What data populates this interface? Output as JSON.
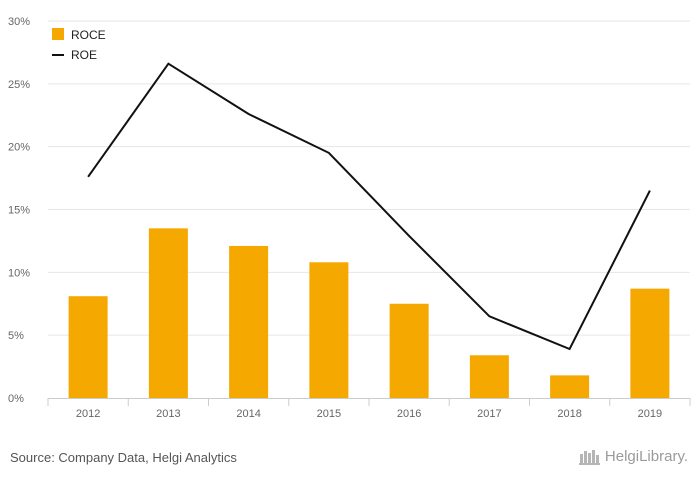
{
  "chart_data": {
    "type": "bar",
    "categories": [
      "2012",
      "2013",
      "2014",
      "2015",
      "2016",
      "2017",
      "2018",
      "2019"
    ],
    "series": [
      {
        "name": "ROCE",
        "kind": "bar",
        "color": "#f5a800",
        "values": [
          8.1,
          13.5,
          12.1,
          10.8,
          7.5,
          3.4,
          1.8,
          8.7
        ]
      },
      {
        "name": "ROE",
        "kind": "line",
        "color": "#111111",
        "values": [
          17.6,
          26.6,
          22.6,
          19.5,
          12.9,
          6.5,
          3.9,
          16.5
        ]
      }
    ],
    "y_ticks": [
      "0%",
      "5%",
      "10%",
      "15%",
      "20%",
      "25%",
      "30%"
    ],
    "ylim": [
      0,
      30
    ],
    "grid": true,
    "legend": "top-left"
  },
  "footer": {
    "source": "Source: Company Data, Helgi Analytics",
    "brand": "HelgiLibrary."
  }
}
